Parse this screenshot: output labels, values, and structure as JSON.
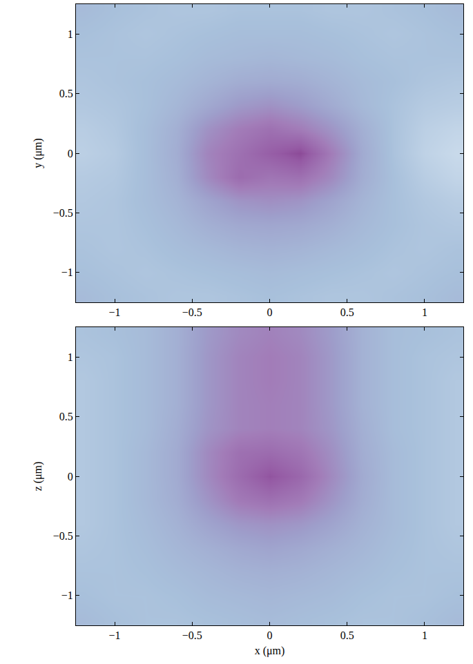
{
  "chart_data": [
    {
      "type": "heatmap",
      "x_label": null,
      "y_label": "y (μm)",
      "x": [
        -1.2,
        -1.0,
        -0.8,
        -0.6,
        -0.4,
        -0.2,
        0,
        0.2,
        0.4,
        0.6,
        0.8,
        1.0,
        1.2
      ],
      "y": [
        -1.2,
        -1.0,
        -0.8,
        -0.6,
        -0.4,
        -0.2,
        0,
        0.2,
        0.4,
        0.6,
        0.8,
        1.0,
        1.2
      ],
      "cells": [
        [
          0.3,
          0.28,
          0.27,
          0.26,
          0.26,
          0.27,
          0.28,
          0.27,
          0.26,
          0.26,
          0.27,
          0.28,
          0.3
        ],
        [
          0.28,
          0.27,
          0.26,
          0.27,
          0.28,
          0.29,
          0.3,
          0.29,
          0.28,
          0.27,
          0.26,
          0.27,
          0.28
        ],
        [
          0.27,
          0.26,
          0.27,
          0.29,
          0.31,
          0.33,
          0.34,
          0.33,
          0.31,
          0.29,
          0.27,
          0.26,
          0.27
        ],
        [
          0.26,
          0.26,
          0.28,
          0.31,
          0.35,
          0.38,
          0.39,
          0.38,
          0.35,
          0.31,
          0.28,
          0.26,
          0.25
        ],
        [
          0.25,
          0.26,
          0.29,
          0.33,
          0.4,
          0.46,
          0.48,
          0.46,
          0.4,
          0.33,
          0.28,
          0.25,
          0.23
        ],
        [
          0.24,
          0.25,
          0.29,
          0.35,
          0.5,
          0.62,
          0.58,
          0.6,
          0.5,
          0.36,
          0.28,
          0.23,
          0.2
        ],
        [
          0.22,
          0.24,
          0.29,
          0.36,
          0.52,
          0.6,
          0.68,
          0.75,
          0.55,
          0.37,
          0.27,
          0.21,
          0.18
        ],
        [
          0.23,
          0.25,
          0.29,
          0.35,
          0.47,
          0.55,
          0.6,
          0.55,
          0.46,
          0.35,
          0.27,
          0.22,
          0.2
        ],
        [
          0.25,
          0.26,
          0.28,
          0.32,
          0.38,
          0.44,
          0.47,
          0.43,
          0.37,
          0.31,
          0.27,
          0.24,
          0.23
        ],
        [
          0.26,
          0.27,
          0.28,
          0.3,
          0.33,
          0.36,
          0.37,
          0.36,
          0.33,
          0.3,
          0.28,
          0.26,
          0.25
        ],
        [
          0.27,
          0.27,
          0.27,
          0.28,
          0.3,
          0.31,
          0.32,
          0.31,
          0.3,
          0.28,
          0.27,
          0.27,
          0.27
        ],
        [
          0.28,
          0.27,
          0.26,
          0.27,
          0.28,
          0.29,
          0.29,
          0.29,
          0.28,
          0.27,
          0.26,
          0.27,
          0.28
        ],
        [
          0.3,
          0.28,
          0.27,
          0.26,
          0.26,
          0.27,
          0.27,
          0.27,
          0.26,
          0.26,
          0.27,
          0.28,
          0.3
        ]
      ],
      "zlim": [
        0,
        1
      ],
      "xlim": [
        -1.25,
        1.25
      ],
      "ylim": [
        -1.25,
        1.25
      ],
      "xticks": [
        {
          "value": -1,
          "label": "−1"
        },
        {
          "value": -0.5,
          "label": "−0.5"
        },
        0,
        0.5,
        1
      ],
      "yticks": [
        {
          "value": -1,
          "label": "−1"
        },
        {
          "value": -0.5,
          "label": "−0.5"
        },
        0,
        0.5,
        1
      ],
      "grid": false
    },
    {
      "type": "heatmap",
      "x_label": "x (μm)",
      "y_label": "z (μm)",
      "x": [
        -1.2,
        -1.0,
        -0.8,
        -0.6,
        -0.4,
        -0.2,
        0,
        0.2,
        0.4,
        0.6,
        0.8,
        1.0,
        1.2
      ],
      "y": [
        -1.2,
        -1.0,
        -0.8,
        -0.6,
        -0.4,
        -0.2,
        0,
        0.2,
        0.4,
        0.6,
        0.8,
        1.0,
        1.2
      ],
      "cells": [
        [
          0.3,
          0.28,
          0.27,
          0.27,
          0.28,
          0.29,
          0.3,
          0.29,
          0.28,
          0.27,
          0.27,
          0.28,
          0.3
        ],
        [
          0.28,
          0.27,
          0.27,
          0.28,
          0.3,
          0.31,
          0.32,
          0.31,
          0.3,
          0.28,
          0.27,
          0.27,
          0.28
        ],
        [
          0.27,
          0.27,
          0.28,
          0.3,
          0.32,
          0.34,
          0.35,
          0.34,
          0.32,
          0.3,
          0.28,
          0.27,
          0.27
        ],
        [
          0.26,
          0.27,
          0.29,
          0.32,
          0.35,
          0.38,
          0.4,
          0.38,
          0.35,
          0.32,
          0.29,
          0.27,
          0.26
        ],
        [
          0.25,
          0.27,
          0.3,
          0.34,
          0.4,
          0.45,
          0.47,
          0.45,
          0.4,
          0.34,
          0.3,
          0.27,
          0.25
        ],
        [
          0.25,
          0.27,
          0.31,
          0.36,
          0.46,
          0.56,
          0.6,
          0.56,
          0.46,
          0.36,
          0.3,
          0.27,
          0.25
        ],
        [
          0.25,
          0.27,
          0.31,
          0.37,
          0.5,
          0.62,
          0.72,
          0.64,
          0.5,
          0.37,
          0.3,
          0.27,
          0.25
        ],
        [
          0.25,
          0.27,
          0.31,
          0.37,
          0.5,
          0.6,
          0.62,
          0.58,
          0.48,
          0.36,
          0.3,
          0.27,
          0.25
        ],
        [
          0.25,
          0.27,
          0.3,
          0.36,
          0.46,
          0.52,
          0.54,
          0.52,
          0.45,
          0.35,
          0.29,
          0.27,
          0.25
        ],
        [
          0.25,
          0.27,
          0.3,
          0.35,
          0.45,
          0.52,
          0.54,
          0.52,
          0.44,
          0.34,
          0.29,
          0.27,
          0.25
        ],
        [
          0.25,
          0.27,
          0.3,
          0.35,
          0.45,
          0.52,
          0.55,
          0.52,
          0.44,
          0.34,
          0.29,
          0.27,
          0.25
        ],
        [
          0.26,
          0.27,
          0.3,
          0.35,
          0.45,
          0.52,
          0.55,
          0.52,
          0.44,
          0.34,
          0.29,
          0.27,
          0.26
        ],
        [
          0.27,
          0.28,
          0.3,
          0.35,
          0.44,
          0.5,
          0.53,
          0.5,
          0.43,
          0.34,
          0.29,
          0.28,
          0.27
        ]
      ],
      "zlim": [
        0,
        1
      ],
      "xlim": [
        -1.25,
        1.25
      ],
      "ylim": [
        -1.25,
        1.25
      ],
      "xticks": [
        {
          "value": -1,
          "label": "−1"
        },
        {
          "value": -0.5,
          "label": "−0.5"
        },
        0,
        0.5,
        1
      ],
      "yticks": [
        {
          "value": -1,
          "label": "−1"
        },
        {
          "value": -0.5,
          "label": "−0.5"
        },
        0,
        0.5,
        1
      ],
      "grid": false
    }
  ]
}
